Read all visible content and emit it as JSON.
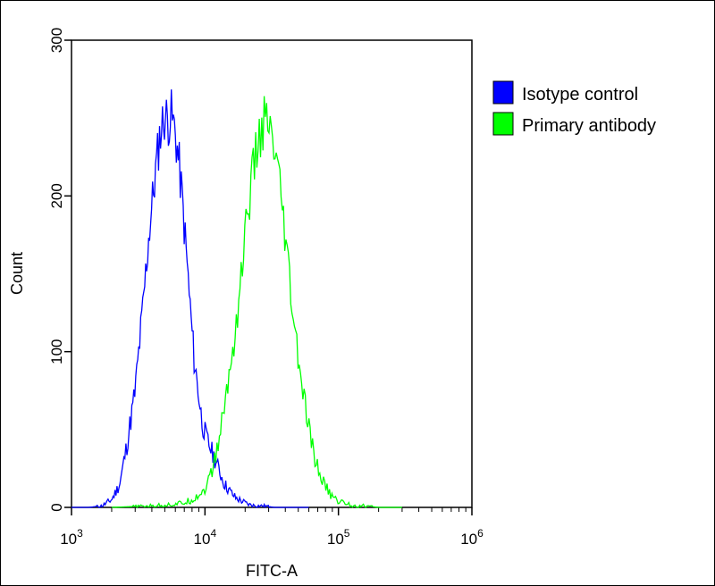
{
  "chart_data": {
    "type": "line",
    "title": "",
    "xlabel": "FITC-A",
    "ylabel": "Count",
    "x_scale": "log",
    "xlim": [
      1000,
      1000000
    ],
    "ylim": [
      0,
      300
    ],
    "x_ticks": [
      {
        "value": 1000,
        "base": "10",
        "exp": "3"
      },
      {
        "value": 10000,
        "base": "10",
        "exp": "4"
      },
      {
        "value": 100000,
        "base": "10",
        "exp": "5"
      },
      {
        "value": 1000000,
        "base": "10",
        "exp": "6"
      }
    ],
    "y_ticks": [
      {
        "value": 0,
        "label": "0"
      },
      {
        "value": 100,
        "label": "100"
      },
      {
        "value": 200,
        "label": "200"
      },
      {
        "value": 300,
        "label": "300"
      }
    ],
    "grid": false,
    "legend_position": "top-right",
    "series": [
      {
        "name": "Isotype control",
        "color": "#0000ff",
        "x": [
          1000,
          1350,
          1700,
          2000,
          2300,
          2600,
          3000,
          3400,
          3800,
          4200,
          4600,
          5000,
          5300,
          5600,
          6000,
          6400,
          6800,
          7300,
          7800,
          8300,
          8900,
          9500,
          10200,
          11000,
          12000,
          13000,
          14000,
          15500,
          17000,
          19000,
          21000,
          24000,
          28000,
          33000,
          40000,
          50000,
          60000
        ],
        "y": [
          0,
          0,
          1,
          5,
          15,
          40,
          75,
          125,
          175,
          210,
          240,
          252,
          248,
          252,
          240,
          220,
          195,
          160,
          125,
          95,
          75,
          55,
          45,
          38,
          30,
          22,
          15,
          10,
          6,
          4,
          2,
          1,
          1,
          0,
          0,
          0,
          0
        ]
      },
      {
        "name": "Primary antibody",
        "color": "#00ff00",
        "x": [
          2000,
          4000,
          6000,
          7000,
          8000,
          9000,
          10000,
          11000,
          12000,
          13000,
          14000,
          15500,
          17000,
          18500,
          20000,
          22000,
          24000,
          26000,
          28000,
          30000,
          32000,
          34000,
          36000,
          38000,
          40000,
          43000,
          46000,
          50000,
          55000,
          60000,
          65000,
          70000,
          78000,
          86000,
          95000,
          110000,
          130000,
          160000,
          200000,
          300000
        ],
        "y": [
          0,
          1,
          2,
          3,
          5,
          8,
          12,
          20,
          32,
          48,
          65,
          90,
          115,
          145,
          175,
          205,
          225,
          240,
          248,
          243,
          232,
          222,
          205,
          190,
          170,
          145,
          120,
          95,
          70,
          50,
          35,
          25,
          15,
          9,
          5,
          3,
          1,
          1,
          0,
          0
        ]
      }
    ]
  }
}
